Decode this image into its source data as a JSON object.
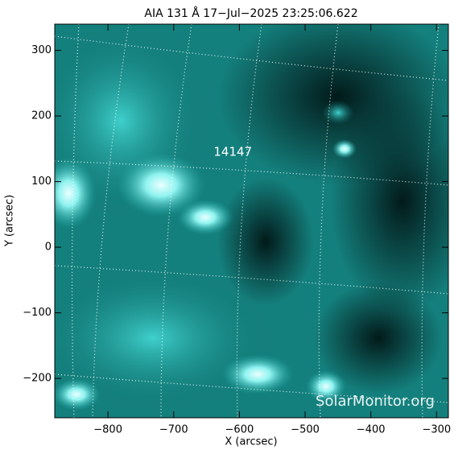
{
  "chart_data": {
    "type": "image",
    "title": "AIA 131 Å 17−Jul−2025 23:25:06.622",
    "x_label": "X (arcsec)",
    "y_label": "Y (arcsec)",
    "xlim": [
      -881,
      -282
    ],
    "ylim": [
      -260,
      340
    ],
    "xticks": [
      {
        "value": -800,
        "label": "−800"
      },
      {
        "value": -700,
        "label": "−700"
      },
      {
        "value": -600,
        "label": "−600"
      },
      {
        "value": -500,
        "label": "−500"
      },
      {
        "value": -400,
        "label": "−400"
      },
      {
        "value": -300,
        "label": "−300"
      }
    ],
    "yticks": [
      {
        "value": -200,
        "label": "−200"
      },
      {
        "value": -100,
        "label": "−100"
      },
      0,
      100,
      200,
      300
    ],
    "annotations": [
      {
        "text": "14147",
        "x": -610,
        "y": 145
      }
    ],
    "watermark": "SolarMonitor.org"
  }
}
